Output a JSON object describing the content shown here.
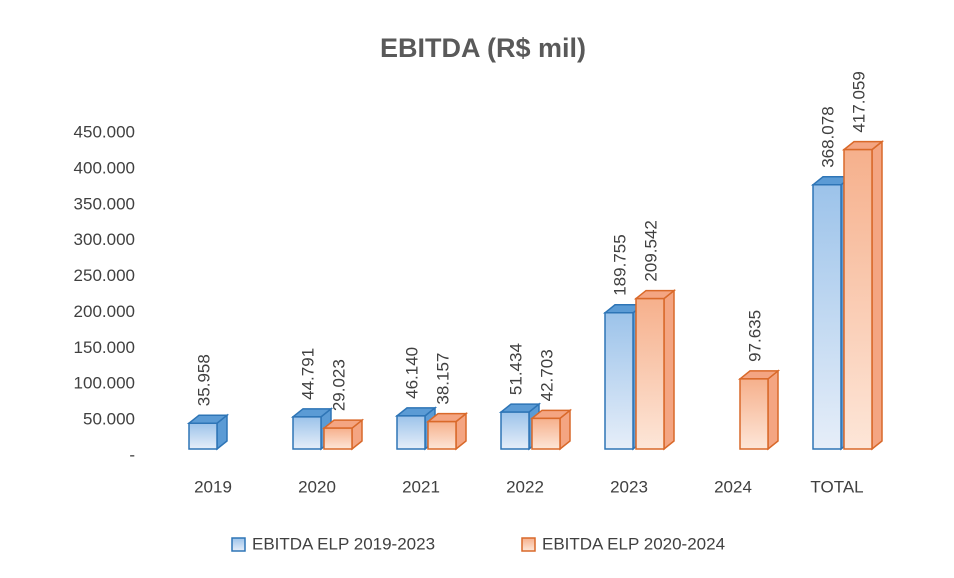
{
  "chart_data": {
    "type": "bar3d",
    "title": "EBITDA (R$ mil)",
    "categories": [
      "2019",
      "2020",
      "2021",
      "2022",
      "2023",
      "2024",
      "TOTAL"
    ],
    "series": [
      {
        "name": "EBITDA ELP 2019-2023",
        "color": "#5b9bd5",
        "values": [
          35958,
          44791,
          46140,
          51434,
          189755,
          null,
          368078
        ],
        "value_labels": [
          "35.958",
          "44.791",
          "46.140",
          "51.434",
          "189.755",
          null,
          "368.078"
        ]
      },
      {
        "name": "EBITDA ELP 2020-2024",
        "color": "#f4a582",
        "values": [
          null,
          29023,
          38157,
          42703,
          209542,
          97635,
          417059
        ],
        "value_labels": [
          null,
          "29.023",
          "38.157",
          "42.703",
          "209.542",
          "97.635",
          "417.059"
        ]
      }
    ],
    "ylim": [
      0,
      450000
    ],
    "yticks": [
      {
        "value": 0,
        "label": "-"
      },
      {
        "value": 50000,
        "label": "50.000"
      },
      {
        "value": 100000,
        "label": "100.000"
      },
      {
        "value": 150000,
        "label": "150.000"
      },
      {
        "value": 200000,
        "label": "200.000"
      },
      {
        "value": 250000,
        "label": "250.000"
      },
      {
        "value": 300000,
        "label": "300.000"
      },
      {
        "value": 350000,
        "label": "350.000"
      },
      {
        "value": 400000,
        "label": "400.000"
      },
      {
        "value": 450000,
        "label": "450.000"
      }
    ],
    "legend": "bottom"
  }
}
